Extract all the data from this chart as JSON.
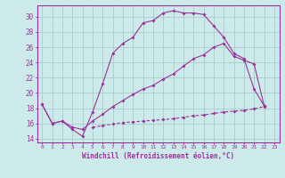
{
  "xlabel": "Windchill (Refroidissement éolien,°C)",
  "background_color": "#cceaea",
  "grid_color": "#aacccc",
  "line_color": "#993399",
  "xlim": [
    -0.5,
    23.5
  ],
  "ylim": [
    13.5,
    31.5
  ],
  "xticks": [
    0,
    1,
    2,
    3,
    4,
    5,
    6,
    7,
    8,
    9,
    10,
    11,
    12,
    13,
    14,
    15,
    16,
    17,
    18,
    19,
    20,
    21,
    22,
    23
  ],
  "yticks": [
    14,
    16,
    18,
    20,
    22,
    24,
    26,
    28,
    30
  ],
  "line1_x": [
    0,
    1,
    2,
    3,
    4,
    5,
    6,
    7,
    8,
    9,
    10,
    11,
    12,
    13,
    14,
    15,
    16,
    17,
    18,
    19,
    20,
    21,
    22
  ],
  "line1_y": [
    18.5,
    16.0,
    16.3,
    15.2,
    14.3,
    17.5,
    21.2,
    25.2,
    26.5,
    27.3,
    29.2,
    29.5,
    30.5,
    30.8,
    30.5,
    30.5,
    30.3,
    28.8,
    27.3,
    25.2,
    24.5,
    20.5,
    18.3
  ],
  "line2_x": [
    0,
    1,
    2,
    3,
    4,
    5,
    6,
    7,
    8,
    9,
    10,
    11,
    12,
    13,
    14,
    15,
    16,
    17,
    18,
    19,
    20,
    21,
    22
  ],
  "line2_y": [
    18.5,
    16.0,
    16.3,
    15.5,
    15.2,
    16.3,
    17.2,
    18.2,
    19.0,
    19.8,
    20.5,
    21.0,
    21.8,
    22.5,
    23.5,
    24.5,
    25.0,
    26.0,
    26.5,
    24.8,
    24.3,
    23.8,
    18.3
  ],
  "line3_x": [
    5,
    6,
    7,
    8,
    9,
    10,
    11,
    12,
    13,
    14,
    15,
    16,
    17,
    18,
    19,
    20,
    21,
    22
  ],
  "line3_y": [
    15.5,
    15.7,
    15.9,
    16.1,
    16.2,
    16.3,
    16.4,
    16.5,
    16.6,
    16.8,
    17.0,
    17.1,
    17.3,
    17.5,
    17.6,
    17.7,
    17.9,
    18.2
  ]
}
